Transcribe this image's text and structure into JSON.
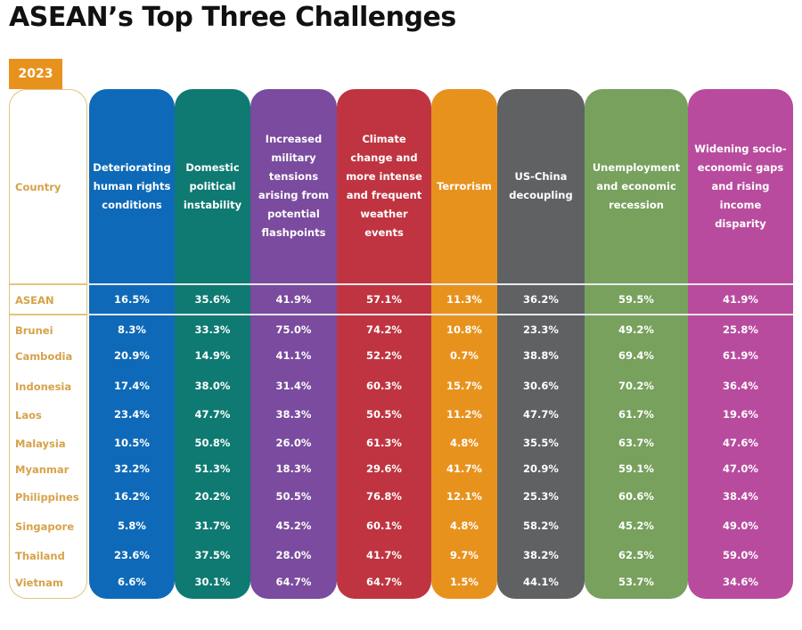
{
  "title": "ASEAN’s Top Three Challenges",
  "year": "2023",
  "country_header": "Country",
  "colors": {
    "accent": "#E8921E",
    "country_text": "#D7A24A",
    "columns": [
      "#0E6AB8",
      "#0E7A72",
      "#7A4B9E",
      "#BF3440",
      "#E8921E",
      "#5F6163",
      "#77A15D",
      "#B94B9E"
    ]
  },
  "columns": [
    {
      "label": "Deteriorating human rights conditions"
    },
    {
      "label": "Domestic political instability"
    },
    {
      "label": "Increased military tensions arising from potential flashpoints"
    },
    {
      "label": "Climate change and more intense and frequent weather events"
    },
    {
      "label": "Terrorism"
    },
    {
      "label": "US-China decoupling"
    },
    {
      "label": "Unemployment and economic recession"
    },
    {
      "label": "Widening socio-economic gaps and rising income disparity"
    }
  ],
  "rows": [
    {
      "country": "ASEAN",
      "values": [
        "16.5%",
        "35.6%",
        "41.9%",
        "57.1%",
        "11.3%",
        "36.2%",
        "59.5%",
        "41.9%"
      ]
    },
    {
      "country": "Brunei",
      "values": [
        "8.3%",
        "33.3%",
        "75.0%",
        "74.2%",
        "10.8%",
        "23.3%",
        "49.2%",
        "25.8%"
      ]
    },
    {
      "country": "Cambodia",
      "values": [
        "20.9%",
        "14.9%",
        "41.1%",
        "52.2%",
        "0.7%",
        "38.8%",
        "69.4%",
        "61.9%"
      ]
    },
    {
      "country": "Indonesia",
      "values": [
        "17.4%",
        "38.0%",
        "31.4%",
        "60.3%",
        "15.7%",
        "30.6%",
        "70.2%",
        "36.4%"
      ]
    },
    {
      "country": "Laos",
      "values": [
        "23.4%",
        "47.7%",
        "38.3%",
        "50.5%",
        "11.2%",
        "47.7%",
        "61.7%",
        "19.6%"
      ]
    },
    {
      "country": "Malaysia",
      "values": [
        "10.5%",
        "50.8%",
        "26.0%",
        "61.3%",
        "4.8%",
        "35.5%",
        "63.7%",
        "47.6%"
      ]
    },
    {
      "country": "Myanmar",
      "values": [
        "32.2%",
        "51.3%",
        "18.3%",
        "29.6%",
        "41.7%",
        "20.9%",
        "59.1%",
        "47.0%"
      ]
    },
    {
      "country": "Philippines",
      "values": [
        "16.2%",
        "20.2%",
        "50.5%",
        "76.8%",
        "12.1%",
        "25.3%",
        "60.6%",
        "38.4%"
      ]
    },
    {
      "country": "Singapore",
      "values": [
        "5.8%",
        "31.7%",
        "45.2%",
        "60.1%",
        "4.8%",
        "58.2%",
        "45.2%",
        "49.0%"
      ]
    },
    {
      "country": "Thailand",
      "values": [
        "23.6%",
        "37.5%",
        "28.0%",
        "41.7%",
        "9.7%",
        "38.2%",
        "62.5%",
        "59.0%"
      ]
    },
    {
      "country": "Vietnam",
      "values": [
        "6.6%",
        "30.1%",
        "64.7%",
        "64.7%",
        "1.5%",
        "44.1%",
        "53.7%",
        "34.6%"
      ]
    }
  ],
  "chart_data": {
    "type": "table",
    "title": "ASEAN’s Top Three Challenges",
    "subtitle": "2023",
    "row_header": "Country",
    "columns": [
      "Deteriorating human rights conditions",
      "Domestic political instability",
      "Increased military tensions arising from potential flashpoints",
      "Climate change and more intense and frequent weather events",
      "Terrorism",
      "US-China decoupling",
      "Unemployment and economic recession",
      "Widening socio-economic gaps and rising income disparity"
    ],
    "rows": [
      "ASEAN",
      "Brunei",
      "Cambodia",
      "Indonesia",
      "Laos",
      "Malaysia",
      "Myanmar",
      "Philippines",
      "Singapore",
      "Thailand",
      "Vietnam"
    ],
    "values_percent": [
      [
        16.5,
        35.6,
        41.9,
        57.1,
        11.3,
        36.2,
        59.5,
        41.9
      ],
      [
        8.3,
        33.3,
        75.0,
        74.2,
        10.8,
        23.3,
        49.2,
        25.8
      ],
      [
        20.9,
        14.9,
        41.1,
        52.2,
        0.7,
        38.8,
        69.4,
        61.9
      ],
      [
        17.4,
        38.0,
        31.4,
        60.3,
        15.7,
        30.6,
        70.2,
        36.4
      ],
      [
        23.4,
        47.7,
        38.3,
        50.5,
        11.2,
        47.7,
        61.7,
        19.6
      ],
      [
        10.5,
        50.8,
        26.0,
        61.3,
        4.8,
        35.5,
        63.7,
        47.6
      ],
      [
        32.2,
        51.3,
        18.3,
        29.6,
        41.7,
        20.9,
        59.1,
        47.0
      ],
      [
        16.2,
        20.2,
        50.5,
        76.8,
        12.1,
        25.3,
        60.6,
        38.4
      ],
      [
        5.8,
        31.7,
        45.2,
        60.1,
        4.8,
        58.2,
        45.2,
        49.0
      ],
      [
        23.6,
        37.5,
        28.0,
        41.7,
        9.7,
        38.2,
        62.5,
        59.0
      ],
      [
        6.6,
        30.1,
        64.7,
        64.7,
        1.5,
        44.1,
        53.7,
        34.6
      ]
    ]
  }
}
